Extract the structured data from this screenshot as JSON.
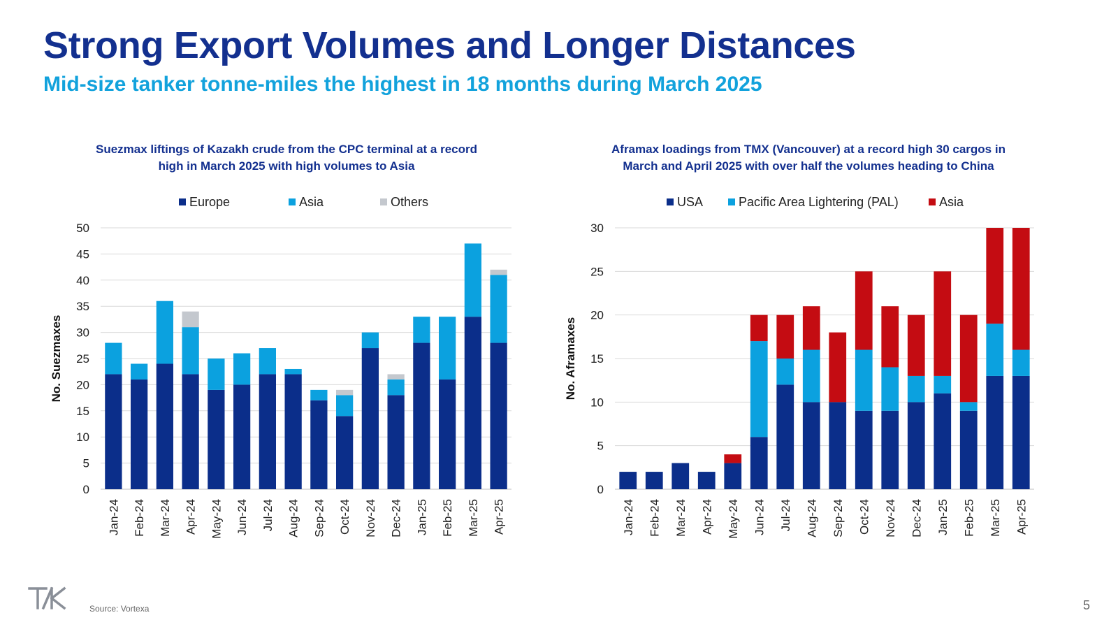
{
  "header": {
    "title": "Strong Export Volumes and Longer Distances",
    "subtitle": "Mid-size tanker tonne-miles the highest in 18 months during March 2025"
  },
  "colors": {
    "title": "#13308f",
    "subtitle": "#12a2dc",
    "navy": "#0b2e8a",
    "cyan": "#0ba1df",
    "grey": "#c4c8ce",
    "red": "#c40c12",
    "chart_title": "#13308f"
  },
  "chart_data": [
    {
      "type": "bar",
      "stacked": true,
      "title_lines": [
        "Suezmax liftings of Kazakh crude from the CPC terminal at a record",
        "high in March 2025 with high volumes to Asia"
      ],
      "xlabel": "",
      "ylabel": "No. Suezmaxes",
      "ylim": [
        0,
        50
      ],
      "yticks": [
        0,
        5,
        10,
        15,
        20,
        25,
        30,
        35,
        40,
        45,
        50
      ],
      "grid": true,
      "legend_position": "top",
      "categories": [
        "Jan-24",
        "Feb-24",
        "Mar-24",
        "Apr-24",
        "May-24",
        "Jun-24",
        "Jul-24",
        "Aug-24",
        "Sep-24",
        "Oct-24",
        "Nov-24",
        "Dec-24",
        "Jan-25",
        "Feb-25",
        "Mar-25",
        "Apr-25"
      ],
      "series": [
        {
          "name": "Europe",
          "color": "#0b2e8a",
          "values": [
            22,
            21,
            24,
            22,
            19,
            20,
            22,
            22,
            17,
            14,
            27,
            18,
            28,
            21,
            33,
            28
          ]
        },
        {
          "name": "Asia",
          "color": "#0ba1df",
          "values": [
            6,
            3,
            12,
            9,
            6,
            6,
            5,
            1,
            2,
            4,
            3,
            3,
            5,
            12,
            14,
            13
          ]
        },
        {
          "name": "Others",
          "color": "#c4c8ce",
          "values": [
            0,
            0,
            0,
            3,
            0,
            0,
            0,
            0,
            0,
            1,
            0,
            1,
            0,
            0,
            0,
            1
          ]
        }
      ]
    },
    {
      "type": "bar",
      "stacked": true,
      "title_lines": [
        "Aframax loadings from TMX (Vancouver) at a record high 30 cargos in",
        "March and April 2025 with over half the volumes heading to China"
      ],
      "xlabel": "",
      "ylabel": "No. Aframaxes",
      "ylim": [
        0,
        30
      ],
      "yticks": [
        0,
        5,
        10,
        15,
        20,
        25,
        30
      ],
      "grid": true,
      "legend_position": "top",
      "categories": [
        "Jan-24",
        "Feb-24",
        "Mar-24",
        "Apr-24",
        "May-24",
        "Jun-24",
        "Jul-24",
        "Aug-24",
        "Sep-24",
        "Oct-24",
        "Nov-24",
        "Dec-24",
        "Jan-25",
        "Feb-25",
        "Mar-25",
        "Apr-25"
      ],
      "series": [
        {
          "name": "USA",
          "color": "#0b2e8a",
          "values": [
            2,
            2,
            3,
            2,
            3,
            6,
            12,
            10,
            10,
            9,
            9,
            10,
            11,
            9,
            13,
            13
          ]
        },
        {
          "name": "Pacific Area Lightering (PAL)",
          "color": "#0ba1df",
          "values": [
            0,
            0,
            0,
            0,
            0,
            11,
            3,
            6,
            0,
            7,
            5,
            3,
            2,
            1,
            6,
            3
          ]
        },
        {
          "name": "Asia",
          "color": "#c40c12",
          "values": [
            0,
            0,
            0,
            0,
            1,
            3,
            5,
            5,
            8,
            9,
            7,
            7,
            12,
            10,
            11,
            14
          ]
        }
      ]
    }
  ],
  "footer": {
    "source": "Source: Vortexa",
    "page_number": "5"
  },
  "logo": {
    "icon": "tk-logo-icon",
    "text": "TK"
  }
}
